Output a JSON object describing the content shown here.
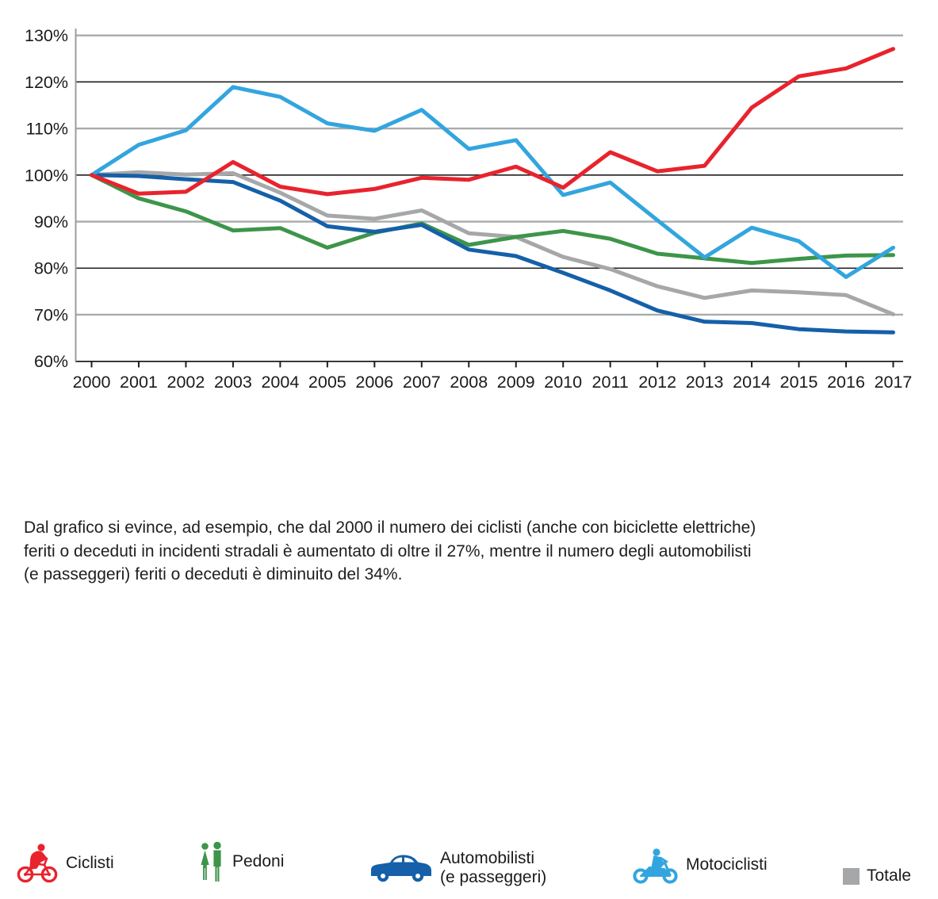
{
  "chart_data": {
    "type": "line",
    "title": "",
    "xlabel": "",
    "ylabel": "",
    "x": [
      2000,
      2001,
      2002,
      2003,
      2004,
      2005,
      2006,
      2007,
      2008,
      2009,
      2010,
      2011,
      2012,
      2013,
      2014,
      2015,
      2016,
      2017
    ],
    "ylim": [
      60,
      130
    ],
    "ytick_step": 10,
    "ytick_labels": [
      "130%",
      "120%",
      "110%",
      "100%",
      "90%",
      "80%",
      "70%",
      "60%"
    ],
    "grid": "horizontal gridlines, alternating dark (120/100/80) and light gray (130/110/90/70), baseline at 60%",
    "legend_position": "below chart",
    "series": [
      {
        "name": "Ciclisti",
        "color": "#e8232d",
        "values": [
          100,
          96,
          96.4,
          102.8,
          97.5,
          95.9,
          97,
          99.4,
          99,
          101.8,
          97.3,
          104.9,
          100.8,
          102,
          114.5,
          121.2,
          122.9,
          127.1
        ]
      },
      {
        "name": "Pedoni",
        "color": "#3d954a",
        "values": [
          100,
          95,
          92.2,
          88.1,
          88.6,
          84.4,
          87.6,
          89.6,
          85,
          86.7,
          88,
          86.3,
          83.1,
          82.1,
          81.1,
          82,
          82.7,
          82.8
        ]
      },
      {
        "name": "Automobilisti (e passeggeri)",
        "color": "#1560a8",
        "values": [
          100,
          99.8,
          99.1,
          98.5,
          94.5,
          89,
          87.8,
          89.3,
          84,
          82.6,
          79,
          75.2,
          70.9,
          68.5,
          68.2,
          66.9,
          66.4,
          66.2
        ]
      },
      {
        "name": "Motociclisti",
        "color": "#33a5de",
        "values": [
          100,
          106.5,
          109.6,
          118.9,
          116.8,
          111.1,
          109.5,
          114,
          105.6,
          107.5,
          95.7,
          98.4,
          90.3,
          82.3,
          88.7,
          85.8,
          78.1,
          84.4
        ]
      },
      {
        "name": "Totale",
        "color": "#a6a7a9",
        "values": [
          100,
          100.6,
          100.1,
          100.4,
          96.2,
          91.3,
          90.6,
          92.4,
          87.5,
          86.7,
          82.4,
          79.8,
          76.1,
          73.6,
          75.2,
          74.8,
          74.2,
          70.1
        ]
      }
    ],
    "axis_colors": {
      "major_grid": "#1f1f1f",
      "minor_grid": "#a9aaac",
      "y_axis_line": "#9b9c9e",
      "tick": "#1f1f1f"
    }
  },
  "legend": {
    "items": [
      {
        "label": "Ciclisti",
        "label2": "",
        "icon": "cyclist-icon",
        "color": "#e8232d"
      },
      {
        "label": "Pedoni",
        "label2": "",
        "icon": "pedestrians-icon",
        "color": "#3d954a"
      },
      {
        "label": "Automobilisti",
        "label2": "(e passeggeri)",
        "icon": "car-icon",
        "color": "#1560a8"
      },
      {
        "label": "Motociclisti",
        "label2": "",
        "icon": "motorcycle-icon",
        "color": "#33a5de"
      },
      {
        "label": "Totale",
        "label2": "",
        "icon": "total-swatch",
        "color": "#a6a7a9"
      }
    ]
  },
  "caption": {
    "text": "Dal grafico si evince, ad esempio, che dal 2000 il numero dei ciclisti (anche con biciclette elettriche)\nferiti o deceduti in incidenti stradali è aumentato di oltre il 27%, mentre il numero degli automobilisti\n(e passeggeri) feriti o deceduti è diminuito del 34%."
  }
}
